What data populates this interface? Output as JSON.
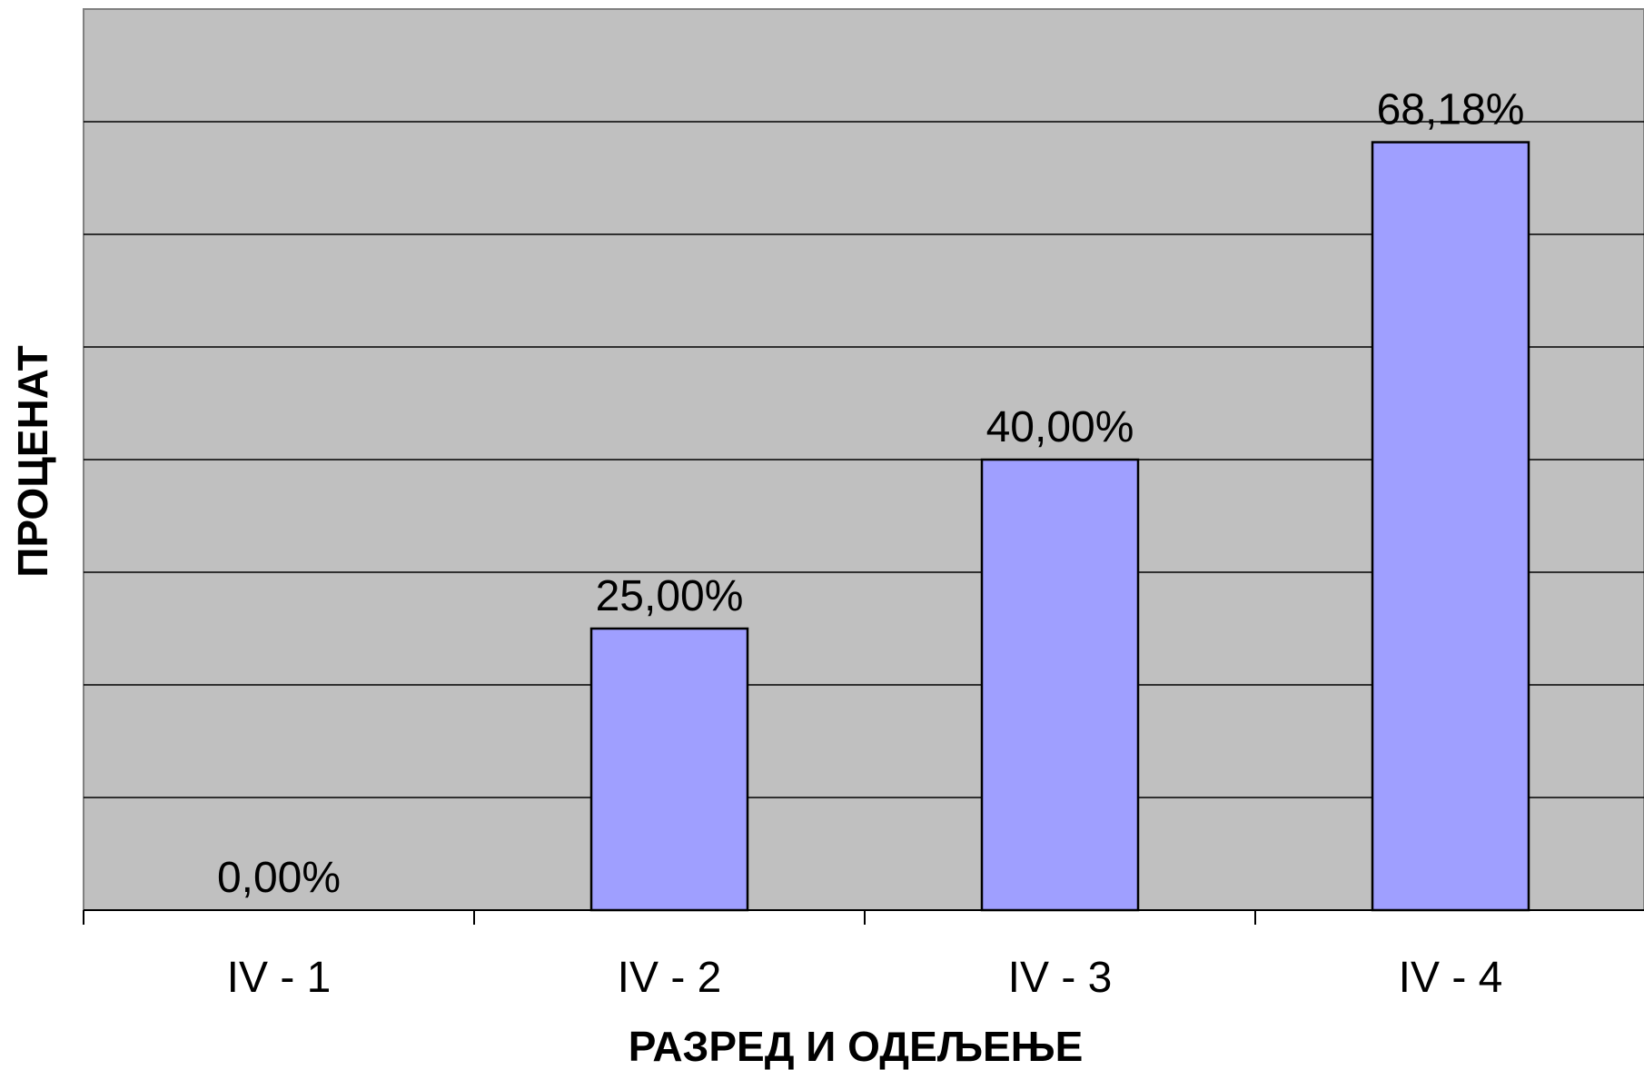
{
  "chart_data": {
    "type": "bar",
    "title": "",
    "xlabel": "РАЗРЕД И ОДЕЉЕЊЕ",
    "ylabel": "ПРОЦЕНАТ",
    "categories": [
      "IV - 1",
      "IV - 2",
      "IV - 3",
      "IV - 4"
    ],
    "values": [
      0.0,
      25.0,
      40.0,
      68.18
    ],
    "data_labels": [
      "0,00%",
      "25,00%",
      "40,00%",
      "68,18%"
    ],
    "ylim": [
      0,
      80
    ],
    "grid": true,
    "legend": "none",
    "colors": {
      "plot_background": "#c0c0c0",
      "bar_fill": "#9f9fff",
      "bar_stroke": "#000000",
      "gridline": "#000000"
    }
  }
}
